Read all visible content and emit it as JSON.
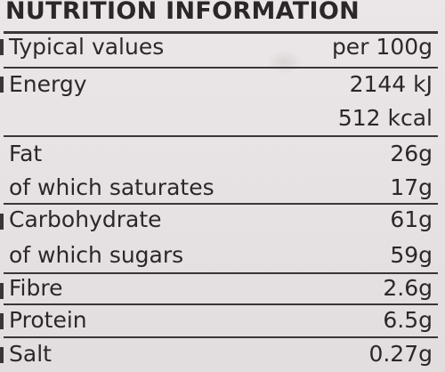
{
  "title": "NUTRITION INFORMATION",
  "header": {
    "label": "Typical values",
    "value": "per 100g"
  },
  "rows": [
    {
      "label": "Energy",
      "value": "2144 kJ"
    },
    {
      "label": "",
      "value": "512 kcal"
    },
    {
      "label": "Fat",
      "value": "26g"
    },
    {
      "label": "of which saturates",
      "value": "17g"
    },
    {
      "label": "Carbohydrate",
      "value": "61g"
    },
    {
      "label": "of which sugars",
      "value": "59g"
    },
    {
      "label": "Fibre",
      "value": "2.6g"
    },
    {
      "label": "Protein",
      "value": "6.5g"
    },
    {
      "label": "Salt",
      "value": "0.27g"
    }
  ]
}
